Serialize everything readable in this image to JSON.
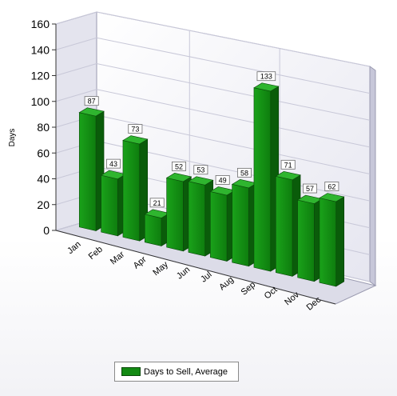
{
  "chart_data": {
    "type": "bar",
    "categories": [
      "Jan",
      "Feb",
      "Mar",
      "Apr",
      "May",
      "Jun",
      "Jul",
      "Aug",
      "Sep",
      "Oct",
      "Nov",
      "Dec"
    ],
    "series": [
      {
        "name": "Days to Sell, Average",
        "values": [
          87,
          43,
          73,
          21,
          52,
          53,
          49,
          58,
          133,
          71,
          57,
          62
        ]
      }
    ],
    "title": "",
    "xlabel": "",
    "ylabel": "Days",
    "ylim": [
      0,
      160
    ],
    "yticks": [
      0,
      20,
      40,
      60,
      80,
      100,
      120,
      140,
      160
    ],
    "grid": true,
    "legend_position": "bottom",
    "bar_color": "#138a13"
  }
}
